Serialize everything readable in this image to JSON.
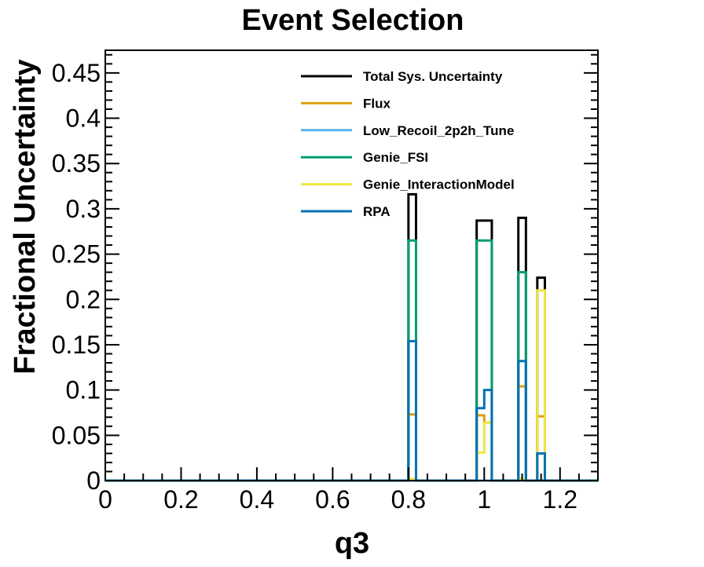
{
  "chart_data": {
    "type": "line",
    "title": "Event Selection",
    "xlabel": "q3",
    "ylabel": "Fractional Uncertainty",
    "xlim": [
      0,
      1.3
    ],
    "ylim": [
      0,
      0.475
    ],
    "xticks": [
      "0",
      "0.2",
      "0.4",
      "0.6",
      "0.8",
      "1",
      "1.2"
    ],
    "xtick_values": [
      0,
      0.2,
      0.4,
      0.6,
      0.8,
      1.0,
      1.2
    ],
    "yticks": [
      "0",
      "0.05",
      "0.1",
      "0.15",
      "0.2",
      "0.25",
      "0.3",
      "0.35",
      "0.4",
      "0.45"
    ],
    "ytick_values": [
      0,
      0.05,
      0.1,
      0.15,
      0.2,
      0.25,
      0.3,
      0.35,
      0.4,
      0.45
    ],
    "legend_position": "top-right",
    "bin_edges": [
      0.8,
      0.82,
      0.98,
      1.0,
      1.02,
      1.09,
      1.11,
      1.14,
      1.16
    ],
    "series": [
      {
        "name": "Total Sys. Uncertainty",
        "color": "#000000",
        "values": [
          0.316,
          0,
          0.287,
          0.287,
          0,
          0.29,
          0,
          0.224
        ]
      },
      {
        "name": "Flux",
        "color": "#e09e0f",
        "values": [
          0.073,
          0,
          0.072,
          0.064,
          0,
          0.104,
          0,
          0.071
        ]
      },
      {
        "name": "Low_Recoil_2p2h_Tune",
        "color": "#56b4e9",
        "values": [
          0,
          0,
          0,
          0,
          0,
          0,
          0,
          0
        ]
      },
      {
        "name": "Genie_FSI",
        "color": "#009e73",
        "values": [
          0.265,
          0,
          0.265,
          0.265,
          0,
          0.23,
          0,
          0
        ]
      },
      {
        "name": "Genie_InteractionModel",
        "color": "#f0e442",
        "values": [
          0.002,
          0,
          0.031,
          0.064,
          0,
          0.002,
          0,
          0.21
        ]
      },
      {
        "name": "RPA",
        "color": "#0072b2",
        "values": [
          0.154,
          0,
          0.08,
          0.1,
          0,
          0.132,
          0,
          0.03
        ]
      }
    ]
  }
}
